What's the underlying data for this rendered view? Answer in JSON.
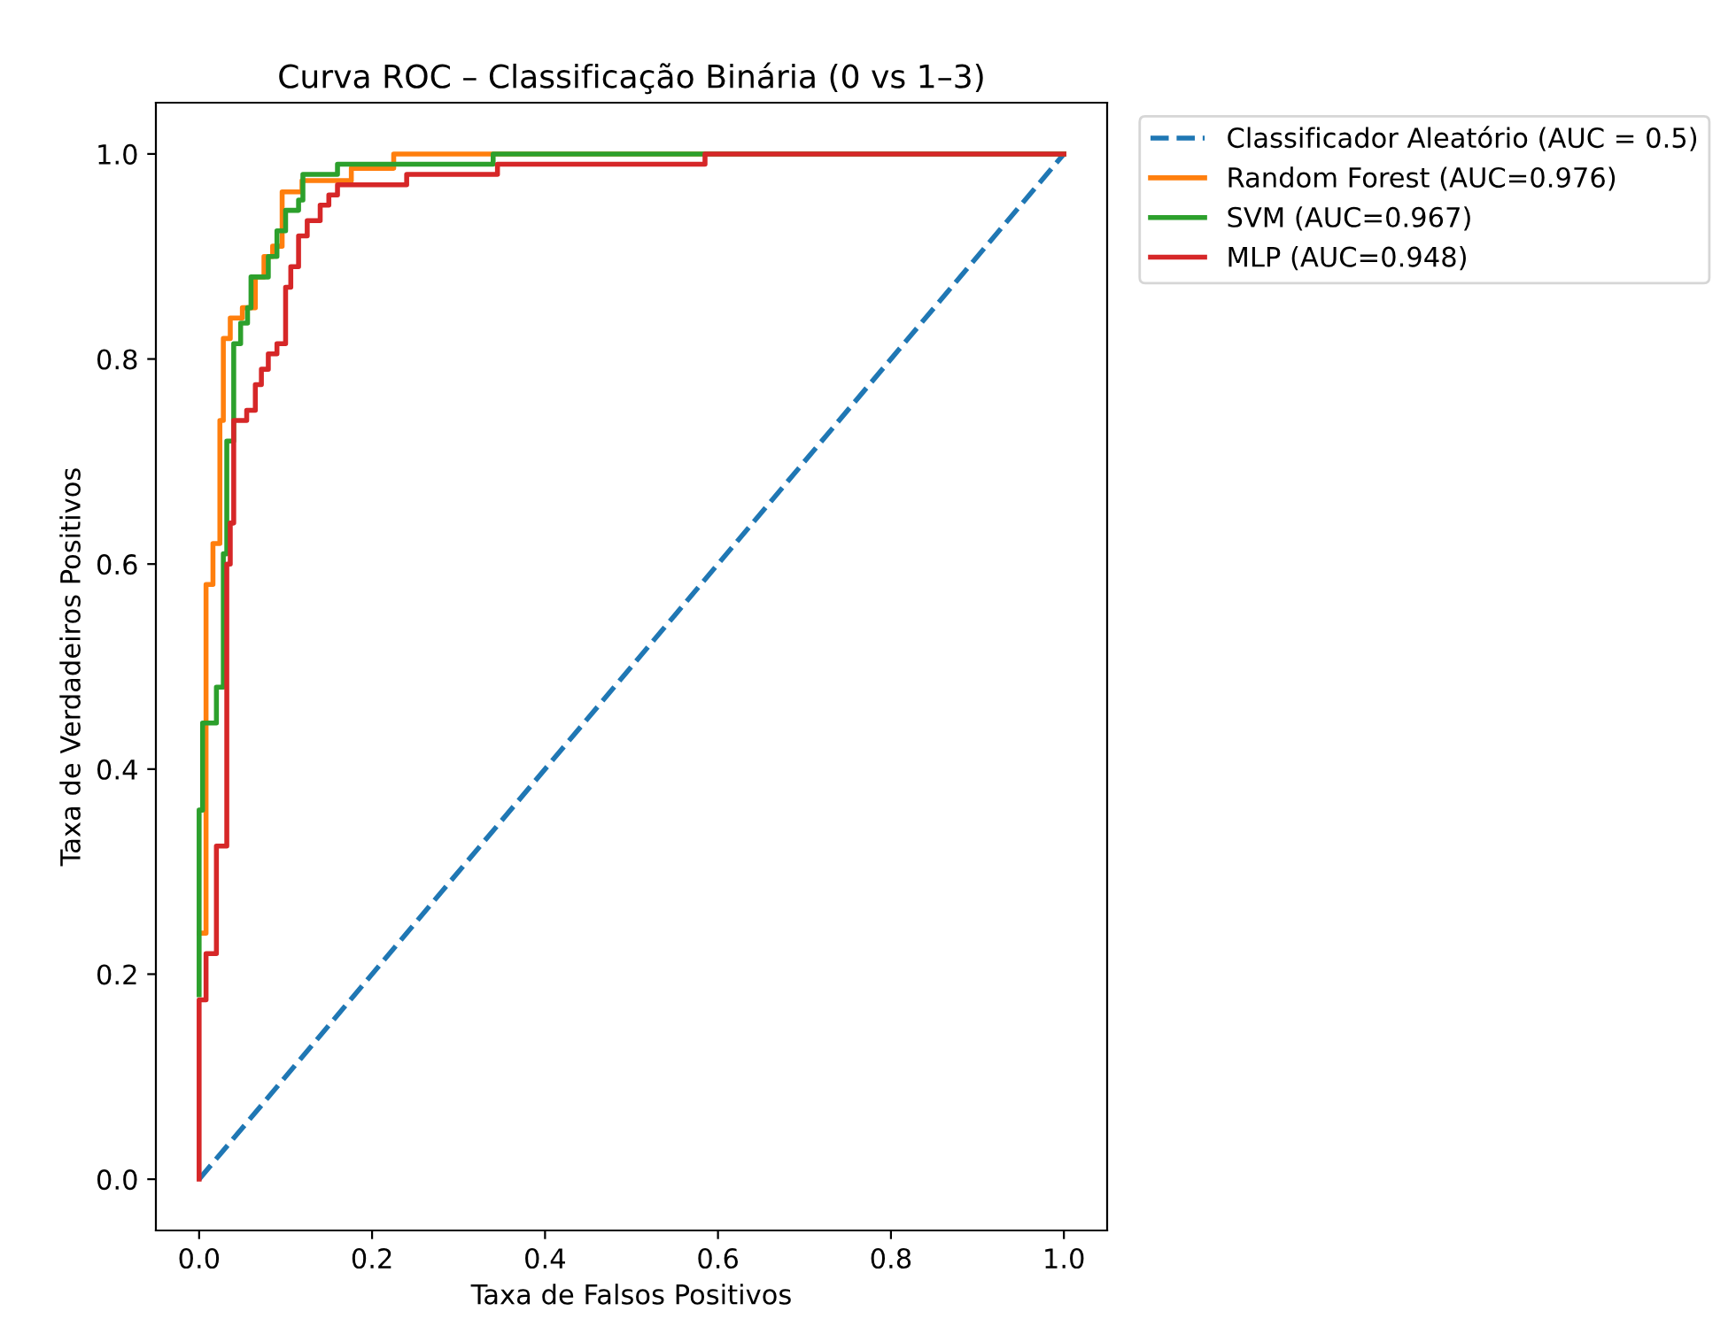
{
  "chart_data": {
    "type": "line",
    "title": "Curva ROC – Classificação Binária (0 vs 1–3)",
    "xlabel": "Taxa de Falsos Positivos",
    "ylabel": "Taxa de Verdadeiros Positivos",
    "xlim": [
      -0.05,
      1.05
    ],
    "ylim": [
      -0.05,
      1.05
    ],
    "xticks": [
      {
        "value": 0,
        "label": "0.0"
      },
      {
        "value": 0.2,
        "label": "0.2"
      },
      {
        "value": 0.4,
        "label": "0.4"
      },
      {
        "value": 0.6,
        "label": "0.6"
      },
      {
        "value": 0.8,
        "label": "0.8"
      },
      {
        "value": 1,
        "label": "1.0"
      }
    ],
    "yticks": [
      {
        "value": 0,
        "label": "0.0"
      },
      {
        "value": 0.2,
        "label": "0.2"
      },
      {
        "value": 0.4,
        "label": "0.4"
      },
      {
        "value": 0.6,
        "label": "0.6"
      },
      {
        "value": 0.8,
        "label": "0.8"
      },
      {
        "value": 1,
        "label": "1.0"
      }
    ],
    "grid": false,
    "legend": "outside top right",
    "marker": "none",
    "series": [
      {
        "name": "Classificador Aleatório (AUC = 0.5)",
        "color": "#1f77b4",
        "line_style": "dashed",
        "x": [
          0,
          1
        ],
        "values": [
          0,
          1
        ]
      },
      {
        "name": "Random Forest (AUC=0.976)",
        "color": "#ff7f0e",
        "line_style": "solid",
        "x": [
          0,
          0.008,
          0.008,
          0.016,
          0.016,
          0.024,
          0.024,
          0.028,
          0.028,
          0.036,
          0.036,
          0.05,
          0.05,
          0.065,
          0.065,
          0.075,
          0.075,
          0.085,
          0.085,
          0.096,
          0.096,
          0.119,
          0.119,
          0.176,
          0.176,
          0.225,
          0.225,
          1
        ],
        "values": [
          0.24,
          0.24,
          0.58,
          0.58,
          0.62,
          0.62,
          0.74,
          0.74,
          0.82,
          0.82,
          0.84,
          0.84,
          0.85,
          0.85,
          0.88,
          0.88,
          0.9,
          0.9,
          0.91,
          0.91,
          0.963,
          0.963,
          0.974,
          0.974,
          0.986,
          0.986,
          1,
          1
        ]
      },
      {
        "name": "SVM (AUC=0.967)",
        "color": "#2ca02c",
        "line_style": "solid",
        "x": [
          0,
          0,
          0.004,
          0.004,
          0.02,
          0.02,
          0.028,
          0.028,
          0.032,
          0.032,
          0.04,
          0.04,
          0.048,
          0.048,
          0.056,
          0.056,
          0.06,
          0.06,
          0.08,
          0.08,
          0.09,
          0.09,
          0.1,
          0.1,
          0.115,
          0.115,
          0.12,
          0.12,
          0.16,
          0.16,
          0.34,
          0.34,
          1
        ],
        "values": [
          0.18,
          0.36,
          0.36,
          0.445,
          0.445,
          0.48,
          0.48,
          0.61,
          0.61,
          0.72,
          0.72,
          0.815,
          0.815,
          0.835,
          0.835,
          0.85,
          0.85,
          0.88,
          0.88,
          0.9,
          0.9,
          0.925,
          0.925,
          0.945,
          0.945,
          0.955,
          0.955,
          0.98,
          0.98,
          0.99,
          0.99,
          1,
          1
        ]
      },
      {
        "name": "MLP (AUC=0.948)",
        "color": "#d62728",
        "line_style": "solid",
        "x": [
          0,
          0,
          0.008,
          0.008,
          0.02,
          0.02,
          0.032,
          0.032,
          0.036,
          0.036,
          0.04,
          0.04,
          0.055,
          0.055,
          0.065,
          0.065,
          0.072,
          0.072,
          0.08,
          0.08,
          0.09,
          0.09,
          0.1,
          0.1,
          0.106,
          0.106,
          0.115,
          0.115,
          0.125,
          0.125,
          0.14,
          0.14,
          0.15,
          0.15,
          0.16,
          0.16,
          0.24,
          0.24,
          0.345,
          0.345,
          0.585,
          0.585,
          1
        ],
        "values": [
          0,
          0.175,
          0.175,
          0.22,
          0.22,
          0.325,
          0.325,
          0.6,
          0.6,
          0.64,
          0.64,
          0.74,
          0.74,
          0.75,
          0.75,
          0.775,
          0.775,
          0.79,
          0.79,
          0.805,
          0.805,
          0.815,
          0.815,
          0.87,
          0.87,
          0.89,
          0.89,
          0.92,
          0.92,
          0.935,
          0.935,
          0.95,
          0.95,
          0.96,
          0.96,
          0.97,
          0.97,
          0.98,
          0.98,
          0.99,
          0.99,
          1,
          1
        ]
      }
    ]
  }
}
